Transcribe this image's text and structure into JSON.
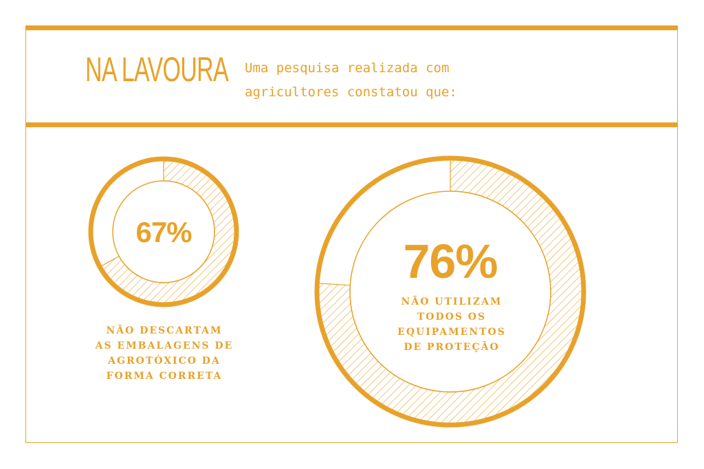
{
  "header": {
    "title": "NA LAVOURA",
    "subtitle_line1": "Uma pesquisa realizada com",
    "subtitle_line2": "agricultores constatou que:"
  },
  "colors": {
    "accent": "#E8A22B",
    "background": "#FFFFFF"
  },
  "chart_data": [
    {
      "type": "pie",
      "value": 67,
      "label": "67%",
      "caption": [
        "NÃO DESCARTAM",
        "AS EMBALAGENS DE",
        "AGROTÓXICO DA",
        "FORMA CORRETA"
      ]
    },
    {
      "type": "pie",
      "value": 76,
      "label": "76%",
      "caption": [
        "NÃO UTILIZAM",
        "TODOS OS",
        "EQUIPAMENTOS",
        "DE PROTEÇÃO"
      ]
    }
  ]
}
